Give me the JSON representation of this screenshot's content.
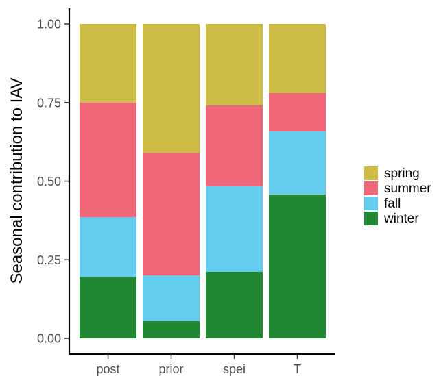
{
  "chart_data": {
    "type": "bar",
    "stacked": true,
    "normalized": true,
    "ylabel": "Seasonal contribution to IAV",
    "xlabel": "",
    "ylim": [
      0,
      1
    ],
    "yticks": [
      "0.00",
      "0.25",
      "0.50",
      "0.75",
      "1.00"
    ],
    "categories": [
      "post",
      "prior",
      "spei",
      "T"
    ],
    "series": [
      {
        "name": "winter",
        "color": "#228833",
        "values": [
          0.195,
          0.055,
          0.212,
          0.458
        ]
      },
      {
        "name": "fall",
        "color": "#66CCEE",
        "values": [
          0.19,
          0.145,
          0.272,
          0.2
        ]
      },
      {
        "name": "summer",
        "color": "#EE6677",
        "values": [
          0.365,
          0.39,
          0.257,
          0.122
        ]
      },
      {
        "name": "spring",
        "color": "#CCBB44",
        "values": [
          0.25,
          0.41,
          0.259,
          0.22
        ]
      }
    ],
    "legend": {
      "position": "right",
      "order": [
        "spring",
        "summer",
        "fall",
        "winter"
      ]
    },
    "grid": false
  }
}
